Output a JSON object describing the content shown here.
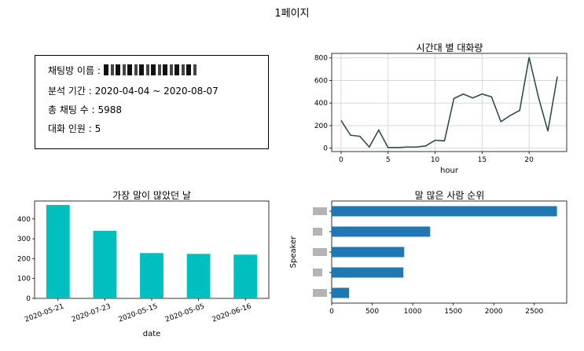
{
  "page_title": "1페이지",
  "info": {
    "room_name_label": "채팅방 이름 :",
    "period": "분석 기간 : 2020-04-04 ~ 2020-08-07",
    "total_chats": "총 채팅 수 : 5988",
    "participants": "대화 인원 : 5"
  },
  "chart_data": [
    {
      "type": "line",
      "title": "시간대 별 대화량",
      "xlabel": "hour",
      "ylabel": "",
      "x": [
        0,
        1,
        2,
        3,
        4,
        5,
        6,
        7,
        8,
        9,
        10,
        11,
        12,
        13,
        14,
        15,
        16,
        17,
        18,
        19,
        20,
        21,
        22,
        23
      ],
      "values": [
        245,
        115,
        105,
        10,
        160,
        5,
        5,
        10,
        10,
        20,
        70,
        65,
        440,
        480,
        445,
        480,
        455,
        235,
        290,
        335,
        805,
        450,
        150,
        635
      ],
      "xticks": [
        0,
        5,
        10,
        15,
        20
      ],
      "yticks": [
        0,
        200,
        400,
        600,
        800
      ],
      "xlim": [
        -1,
        24
      ],
      "ylim": [
        -30,
        840
      ],
      "grid": true,
      "color": "#2f4f4f"
    },
    {
      "type": "bar",
      "title": "가장 말이 많았던 날",
      "xlabel": "date",
      "ylabel": "",
      "categories": [
        "2020-05-21",
        "2020-07-23",
        "2020-05-15",
        "2020-05-05",
        "2020-06-16"
      ],
      "values": [
        470,
        340,
        228,
        224,
        220
      ],
      "yticks": [
        0,
        100,
        200,
        300,
        400
      ],
      "ylim": [
        0,
        490
      ],
      "grid": false,
      "color": "#00bfbf"
    },
    {
      "type": "bar",
      "orientation": "horizontal",
      "title": "말 많은 사람 순위",
      "xlabel": "",
      "ylabel": "Speaker",
      "values": [
        2780,
        1215,
        895,
        885,
        215
      ],
      "xticks": [
        0,
        500,
        1000,
        1500,
        2000,
        2500
      ],
      "xlim": [
        0,
        2900
      ],
      "grid": false,
      "color": "#1f77b4"
    }
  ]
}
